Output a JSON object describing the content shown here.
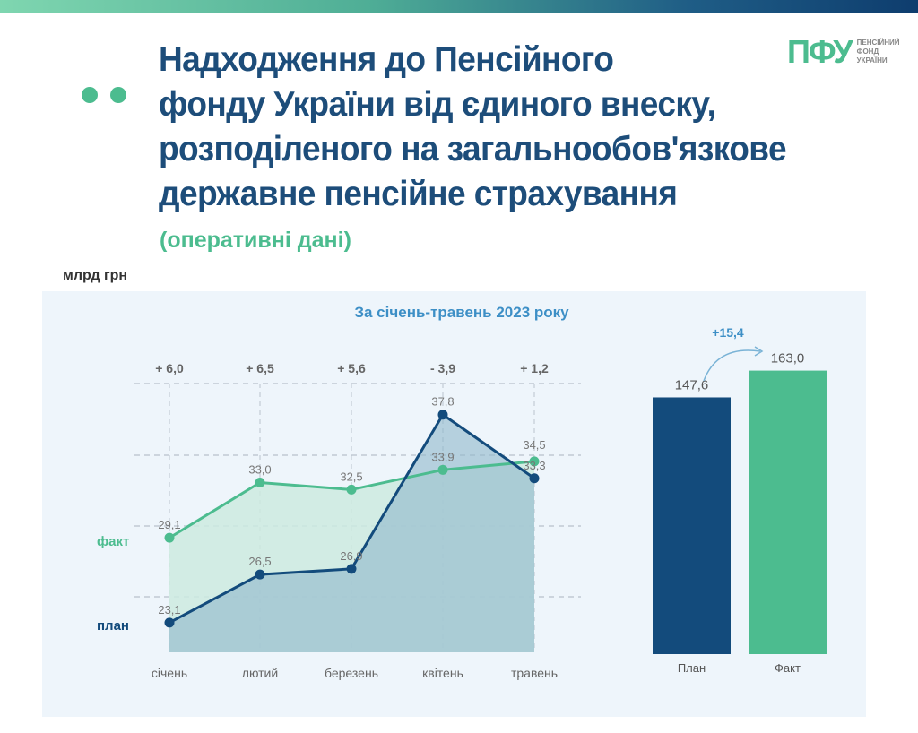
{
  "header": {
    "title_lines": [
      "Надходження до Пенсійного",
      "фонду України від єдиного внеску,",
      "розподіленого на загальнообов'язкове",
      "державне пенсійне страхування"
    ],
    "subtitle": "(оперативні дані)",
    "logo_mark": "ПФУ",
    "logo_text": [
      "ПЕНСІЙНИЙ",
      "ФОНД",
      "УКРАЇНИ"
    ]
  },
  "unit_label": "млрд грн",
  "colors": {
    "plan": "#134b7c",
    "fact": "#4cbc8f",
    "title": "#1d4d7a"
  },
  "chart_data": [
    {
      "type": "area",
      "title": "За січень-травень 2023 року",
      "categories": [
        "січень",
        "лютий",
        "березень",
        "квітень",
        "травень"
      ],
      "series": [
        {
          "name": "факт",
          "values": [
            29.1,
            33.0,
            32.5,
            33.9,
            34.5
          ],
          "labels": [
            "29,1",
            "33,0",
            "32,5",
            "33,9",
            "34,5"
          ]
        },
        {
          "name": "план",
          "values": [
            23.1,
            26.5,
            26.9,
            37.8,
            33.3
          ],
          "labels": [
            "23,1",
            "26,5",
            "26,9",
            "37,8",
            "33,3"
          ]
        }
      ],
      "differences": [
        "+ 6,0",
        "+ 6,5",
        "+ 5,6",
        "- 3,9",
        "+ 1,2"
      ],
      "ylim": [
        21,
        40
      ],
      "grid": true
    },
    {
      "type": "bar",
      "categories": [
        "План",
        "Факт"
      ],
      "values": [
        147.6,
        163.0
      ],
      "labels": [
        "147,6",
        "163,0"
      ],
      "difference": "+15,4",
      "ylim": [
        0,
        170
      ]
    }
  ]
}
